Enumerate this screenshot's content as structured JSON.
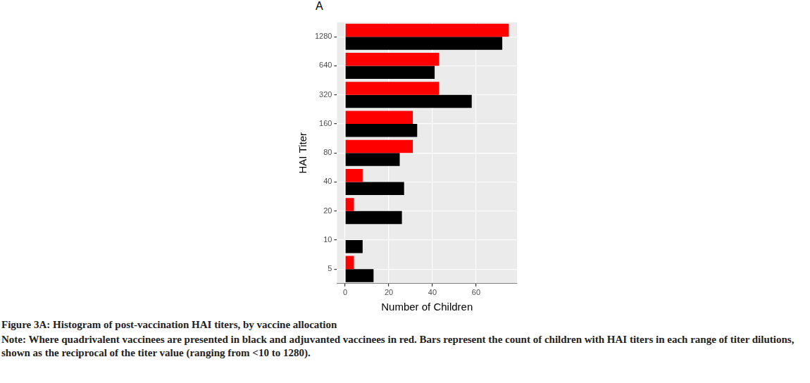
{
  "chart_data": {
    "type": "bar",
    "orientation": "horizontal",
    "title": "A",
    "caption": "Figure 3A: Histogram of post-vaccination HAI titers, by vaccine allocation",
    "note": "Note: Where quadrivalent vaccinees are presented in black and adjuvanted vaccinees in red. Bars represent the count of children with HAI titers in each range of titer dilutions, shown as the reciprocal of the titer value (ranging from <10 to 1280).",
    "x_label": "Number of Children",
    "y_label": "HAI Titer",
    "categories": [
      "1280",
      "640",
      "320",
      "160",
      "80",
      "40",
      "20",
      "10",
      "5"
    ],
    "series": [
      {
        "name": "adjuvanted",
        "color": "#ff0000",
        "values": [
          75,
          43,
          43,
          31,
          31,
          8,
          4,
          0,
          4
        ]
      },
      {
        "name": "quadrivalent",
        "color": "#000000",
        "values": [
          72,
          41,
          58,
          33,
          25,
          27,
          26,
          8,
          13
        ]
      }
    ],
    "xlim": [
      -3.75,
      78.75
    ],
    "xticks": [
      0,
      20,
      40,
      60
    ],
    "grid": true
  }
}
